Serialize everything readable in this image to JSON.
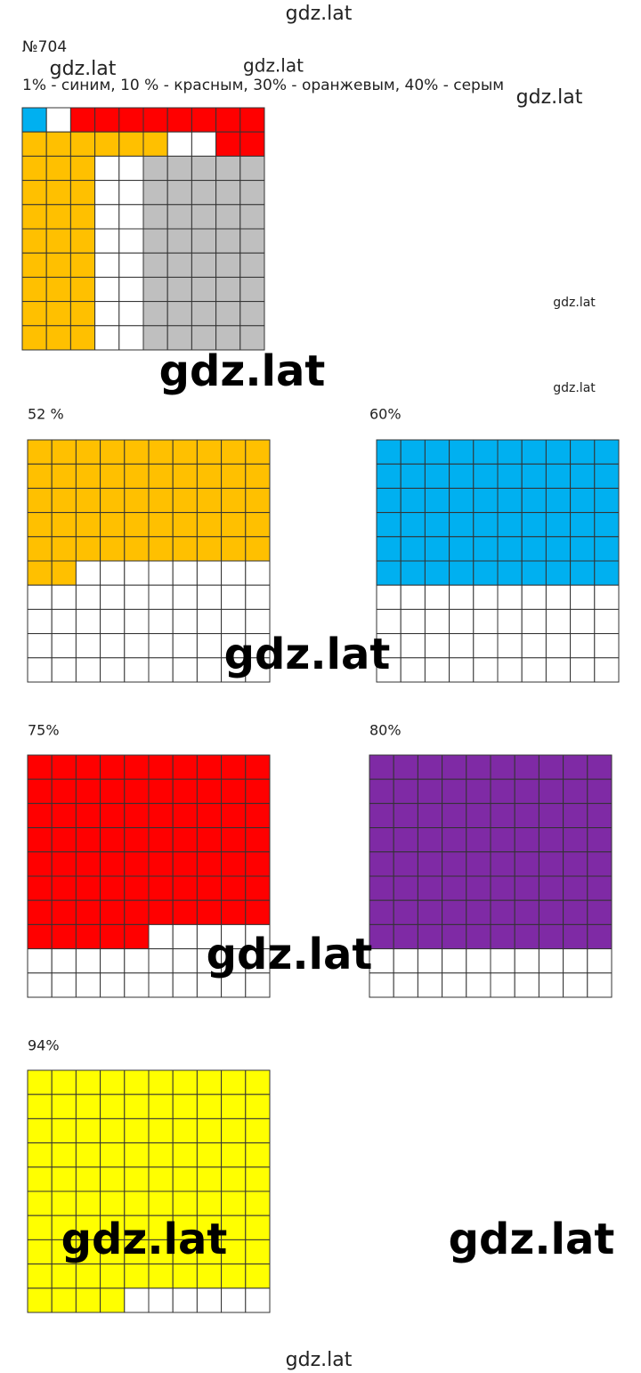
{
  "header": {
    "number": "№704",
    "task": "1% - синим, 10 % - красным, 30% - оранжевым, 40% - серым"
  },
  "grids": [
    {
      "segments": [
        {
          "value": 1,
          "color": "#00b0f0"
        },
        {
          "value": 10,
          "color": "#ff0000"
        },
        {
          "value": 30,
          "color": "#ffc000"
        },
        {
          "value": 40,
          "color": "#bfbfbf"
        }
      ]
    },
    {
      "label": "52 %",
      "value": 52,
      "color": "#ffc000"
    },
    {
      "label": "60%",
      "value": 60,
      "color": "#00b0f0"
    },
    {
      "label": "75%",
      "value": 75,
      "color": "#ff0000"
    },
    {
      "label": "80%",
      "value": 80,
      "color": "#7f2aa5"
    },
    {
      "label": "94%",
      "value": 94,
      "color": "#ffff00"
    }
  ],
  "watermarks": [
    "gdz.lat",
    "gdz.lat",
    "gdz.lat",
    "gdz.lat",
    "gdz.lat",
    "gdz.lat",
    "gdz.lat",
    "gdz.lat",
    "gdz.lat",
    "gdz.lat",
    "gdz.lat",
    "gdz.lat"
  ]
}
